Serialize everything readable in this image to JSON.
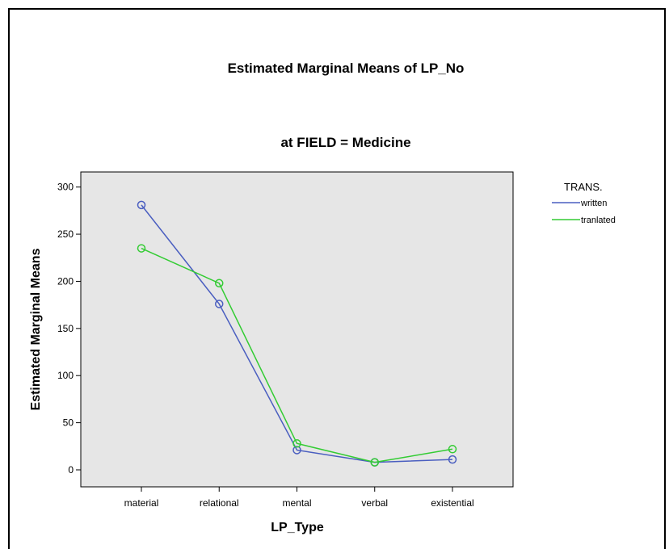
{
  "chart_data": {
    "type": "line",
    "title": "Estimated Marginal Means of LP_No",
    "subtitle": "at FIELD = Medicine",
    "xlabel": "LP_Type",
    "ylabel": "Estimated Marginal Means",
    "categories": [
      "material",
      "relational",
      "mental",
      "verbal",
      "existential"
    ],
    "ylim": [
      -18,
      316
    ],
    "yticks": [
      0,
      50,
      100,
      150,
      200,
      250,
      300
    ],
    "legend_title": "TRANS.",
    "legend_position": "right",
    "grid": false,
    "plot_background": "#e6e6e6",
    "series": [
      {
        "name": "written",
        "color": "#4a5ec0",
        "values": [
          281,
          176,
          21,
          8,
          11
        ]
      },
      {
        "name": "tranlated",
        "color": "#33cc33",
        "values": [
          235,
          198,
          28,
          8,
          22
        ]
      }
    ]
  }
}
